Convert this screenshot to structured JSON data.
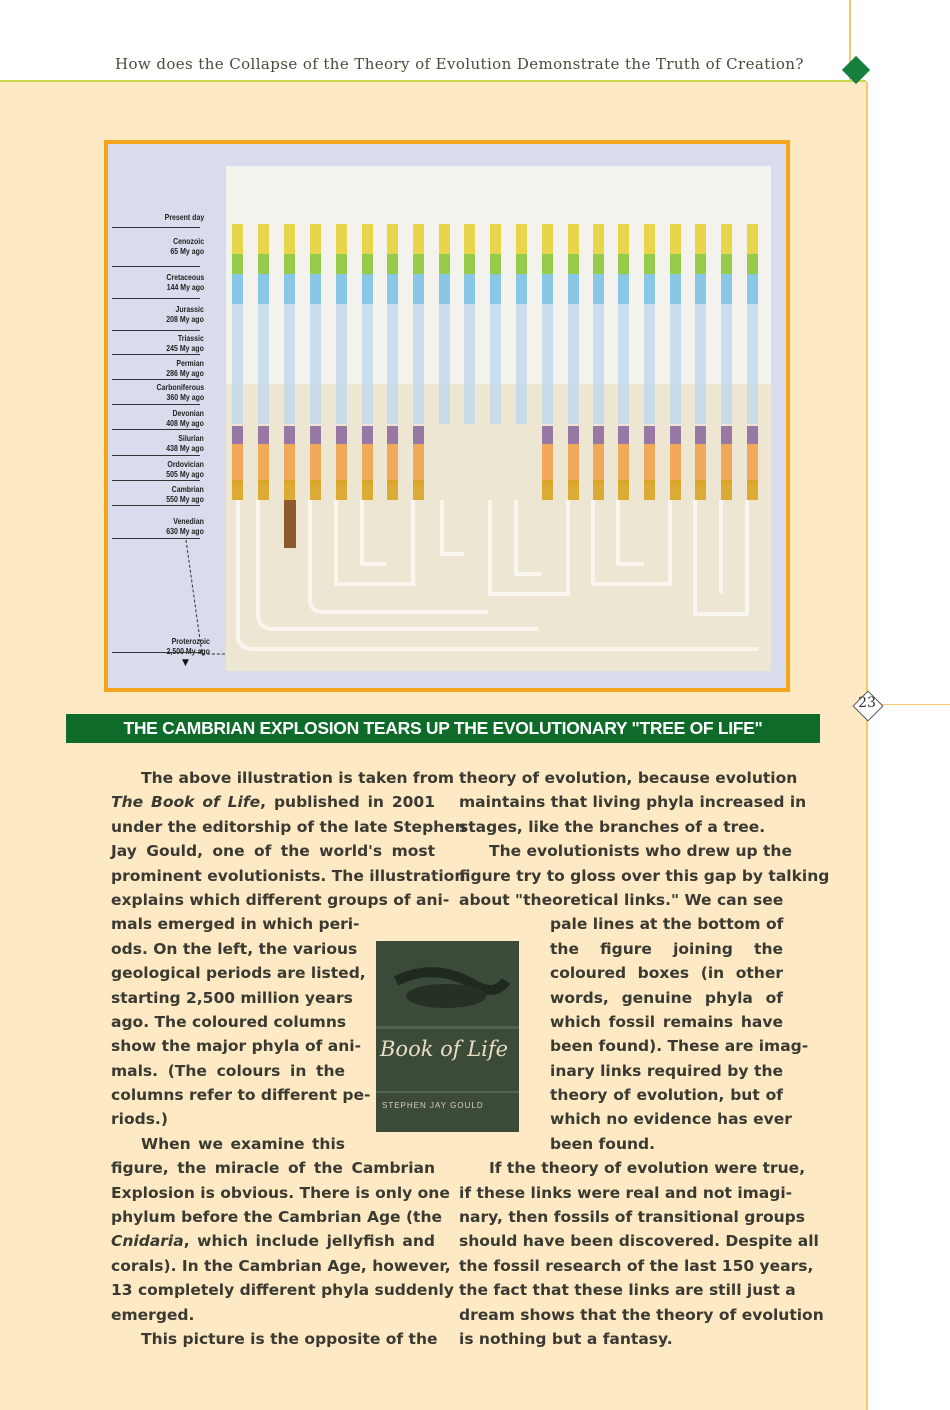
{
  "header": {
    "running_title": "How does the Collapse of the Theory of Evolution Demonstrate the Truth of Creation?",
    "page_number": "23"
  },
  "figure": {
    "periods": [
      {
        "name": "Present day",
        "age": ""
      },
      {
        "name": "Cenozoic",
        "age": "65 My ago"
      },
      {
        "name": "Cretaceous",
        "age": "144 My ago"
      },
      {
        "name": "Jurassic",
        "age": "208 My ago"
      },
      {
        "name": "Triassic",
        "age": "245 My ago"
      },
      {
        "name": "Permian",
        "age": "286 My ago"
      },
      {
        "name": "Carboniferous",
        "age": "360 My ago"
      },
      {
        "name": "Devonian",
        "age": "408 My ago"
      },
      {
        "name": "Silurian",
        "age": "438 My ago"
      },
      {
        "name": "Ordovician",
        "age": "505 My ago"
      },
      {
        "name": "Cambrian",
        "age": "550 My ago"
      },
      {
        "name": "Venedian",
        "age": "630 My ago"
      },
      {
        "name": "Proterozoic",
        "age": "2,500 My ago"
      }
    ],
    "arrow": "▼",
    "colors": {
      "yellow": "#e6d23a",
      "green": "#8cc63a",
      "blue": "#7cc3e6",
      "purple": "#8e6c9e",
      "orange": "#f0a24a",
      "gold": "#d8a424",
      "brown": "#8c5a2c",
      "border": "#f4a51c"
    }
  },
  "caption": "THE CAMBRIAN EXPLOSION TEARS UP THE EVOLUTIONARY \"TREE OF LIFE\"",
  "book_cover": {
    "title": "Book of Life",
    "author": "STEPHEN JAY GOULD"
  },
  "left_column": {
    "l1": "The above illustration is taken from",
    "l2a": "The Book of Life",
    "l2b": ", published in 2001",
    "l3": "under the editorship of the late Stephen",
    "l4": "Jay Gould, one of the world's most",
    "l5": "prominent evolutionists. The illustration",
    "l6": "explains which different groups of ani-",
    "l7": "mals emerged in which peri-",
    "l8": "ods. On the left, the various",
    "l9": "geological periods are listed,",
    "l10": "starting 2,500 million years",
    "l11": "ago. The coloured columns",
    "l12": "show the major phyla of ani-",
    "l13": "mals. (The colours in the",
    "l14": "columns refer to different pe-",
    "l15": "riods.)",
    "l16": "When we examine this",
    "l17": "figure, the miracle of the Cambrian",
    "l18": "Explosion is obvious. There is only one",
    "l19": "phylum before the Cambrian Age (the",
    "l20a": "Cnidaria",
    "l20b": ", which include jellyfish and",
    "l21": "corals). In the Cambrian Age, however,",
    "l22": "13 completely different phyla suddenly",
    "l23": "emerged.",
    "l24": "This picture is the opposite of the"
  },
  "right_column": {
    "l1": "theory of evolution, because evolution",
    "l2": "maintains that living phyla increased in",
    "l3": "stages, like the branches of a tree.",
    "l4": "The evolutionists who drew up the",
    "l5": "figure try to gloss over this gap by talking",
    "l6": "about \"theoretical links.\" We can see",
    "l7": "pale lines at the bottom of",
    "l8": "the figure joining the",
    "l9": "coloured boxes (in other",
    "l10": "words, genuine phyla of",
    "l11": "which fossil remains have",
    "l12": "been found). These are imag-",
    "l13": "inary links required by the",
    "l14": "theory of evolution, but of",
    "l15": "which no evidence has ever",
    "l16": "been found.",
    "l17": "If the theory of evolution were true,",
    "l18": "if these links were real and not imagi-",
    "l19": "nary, then fossils of transitional groups",
    "l20": "should have been discovered. Despite all",
    "l21": "the fossil research of the last 150 years,",
    "l22": "the fact that these links are still just a",
    "l23": "dream shows that the theory of evolution",
    "l24": "is nothing but a fantasy."
  }
}
